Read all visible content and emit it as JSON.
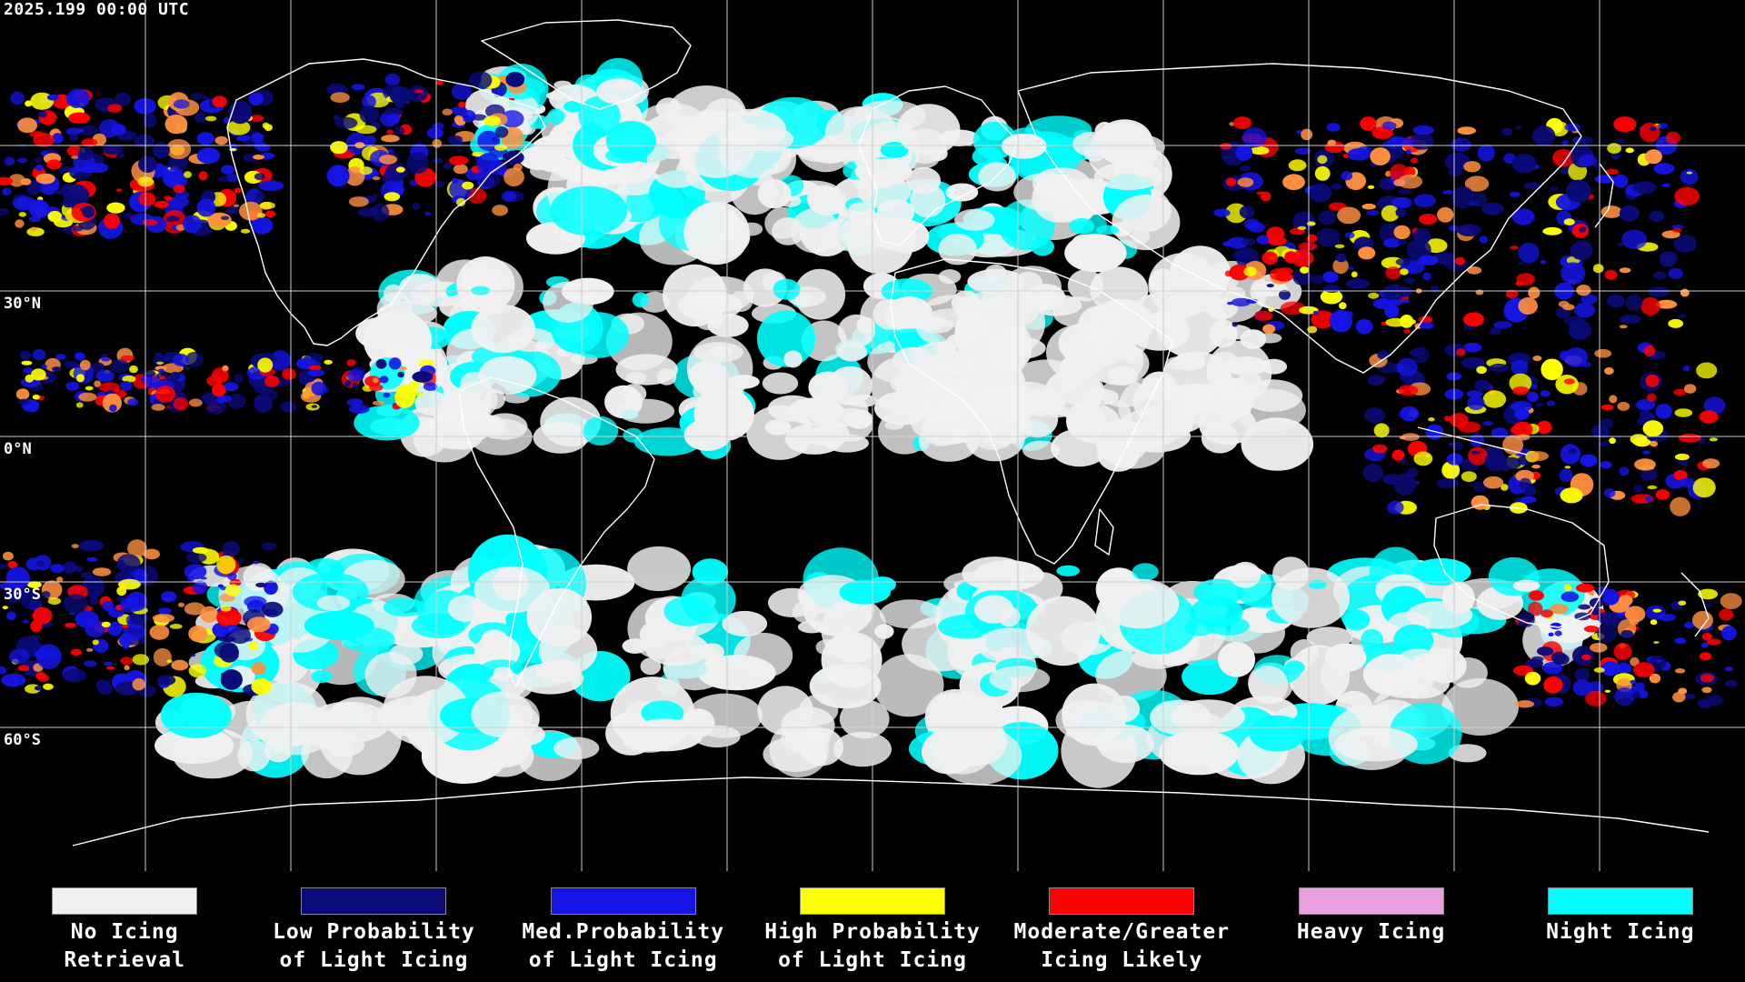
{
  "header": {
    "timestamp": "2025.199 00:00 UTC"
  },
  "map": {
    "lat_labels": [
      {
        "label": "30°N",
        "lat": 30
      },
      {
        "label": "0°N",
        "lat": 0
      },
      {
        "label": "30°S",
        "lat": -30
      },
      {
        "label": "60°S",
        "lat": -60
      }
    ],
    "colors": {
      "background": "#000000",
      "grid": "#d0d0d0",
      "coast": "#ffffff"
    }
  },
  "legend": {
    "items": [
      {
        "line1": "No Icing",
        "line2": "Retrieval",
        "color": "#f0f0f0"
      },
      {
        "line1": "Low Probability",
        "line2": "of Light Icing",
        "color": "#0a0a78"
      },
      {
        "line1": "Med.Probability",
        "line2": "of Light Icing",
        "color": "#1414e6"
      },
      {
        "line1": "High Probability",
        "line2": "of Light Icing",
        "color": "#ffff00"
      },
      {
        "line1": "Moderate/Greater",
        "line2": "Icing Likely",
        "color": "#ff0000"
      },
      {
        "line1": "Heavy Icing",
        "line2": "",
        "color": "#e8a0e0"
      },
      {
        "line1": "Night Icing",
        "line2": "",
        "color": "#00ffff"
      }
    ]
  }
}
